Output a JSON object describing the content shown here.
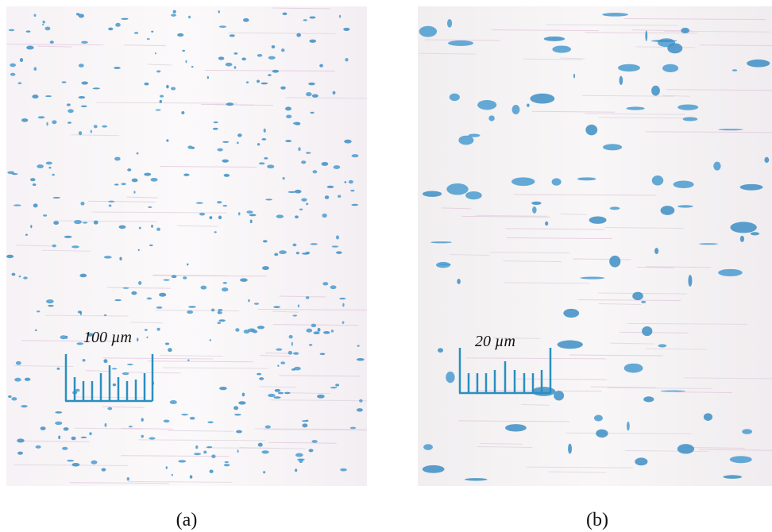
{
  "panels": [
    {
      "scale_label": "100 µm",
      "caption": "(a)"
    },
    {
      "scale_label": "20 µm",
      "caption": "(b)"
    }
  ]
}
